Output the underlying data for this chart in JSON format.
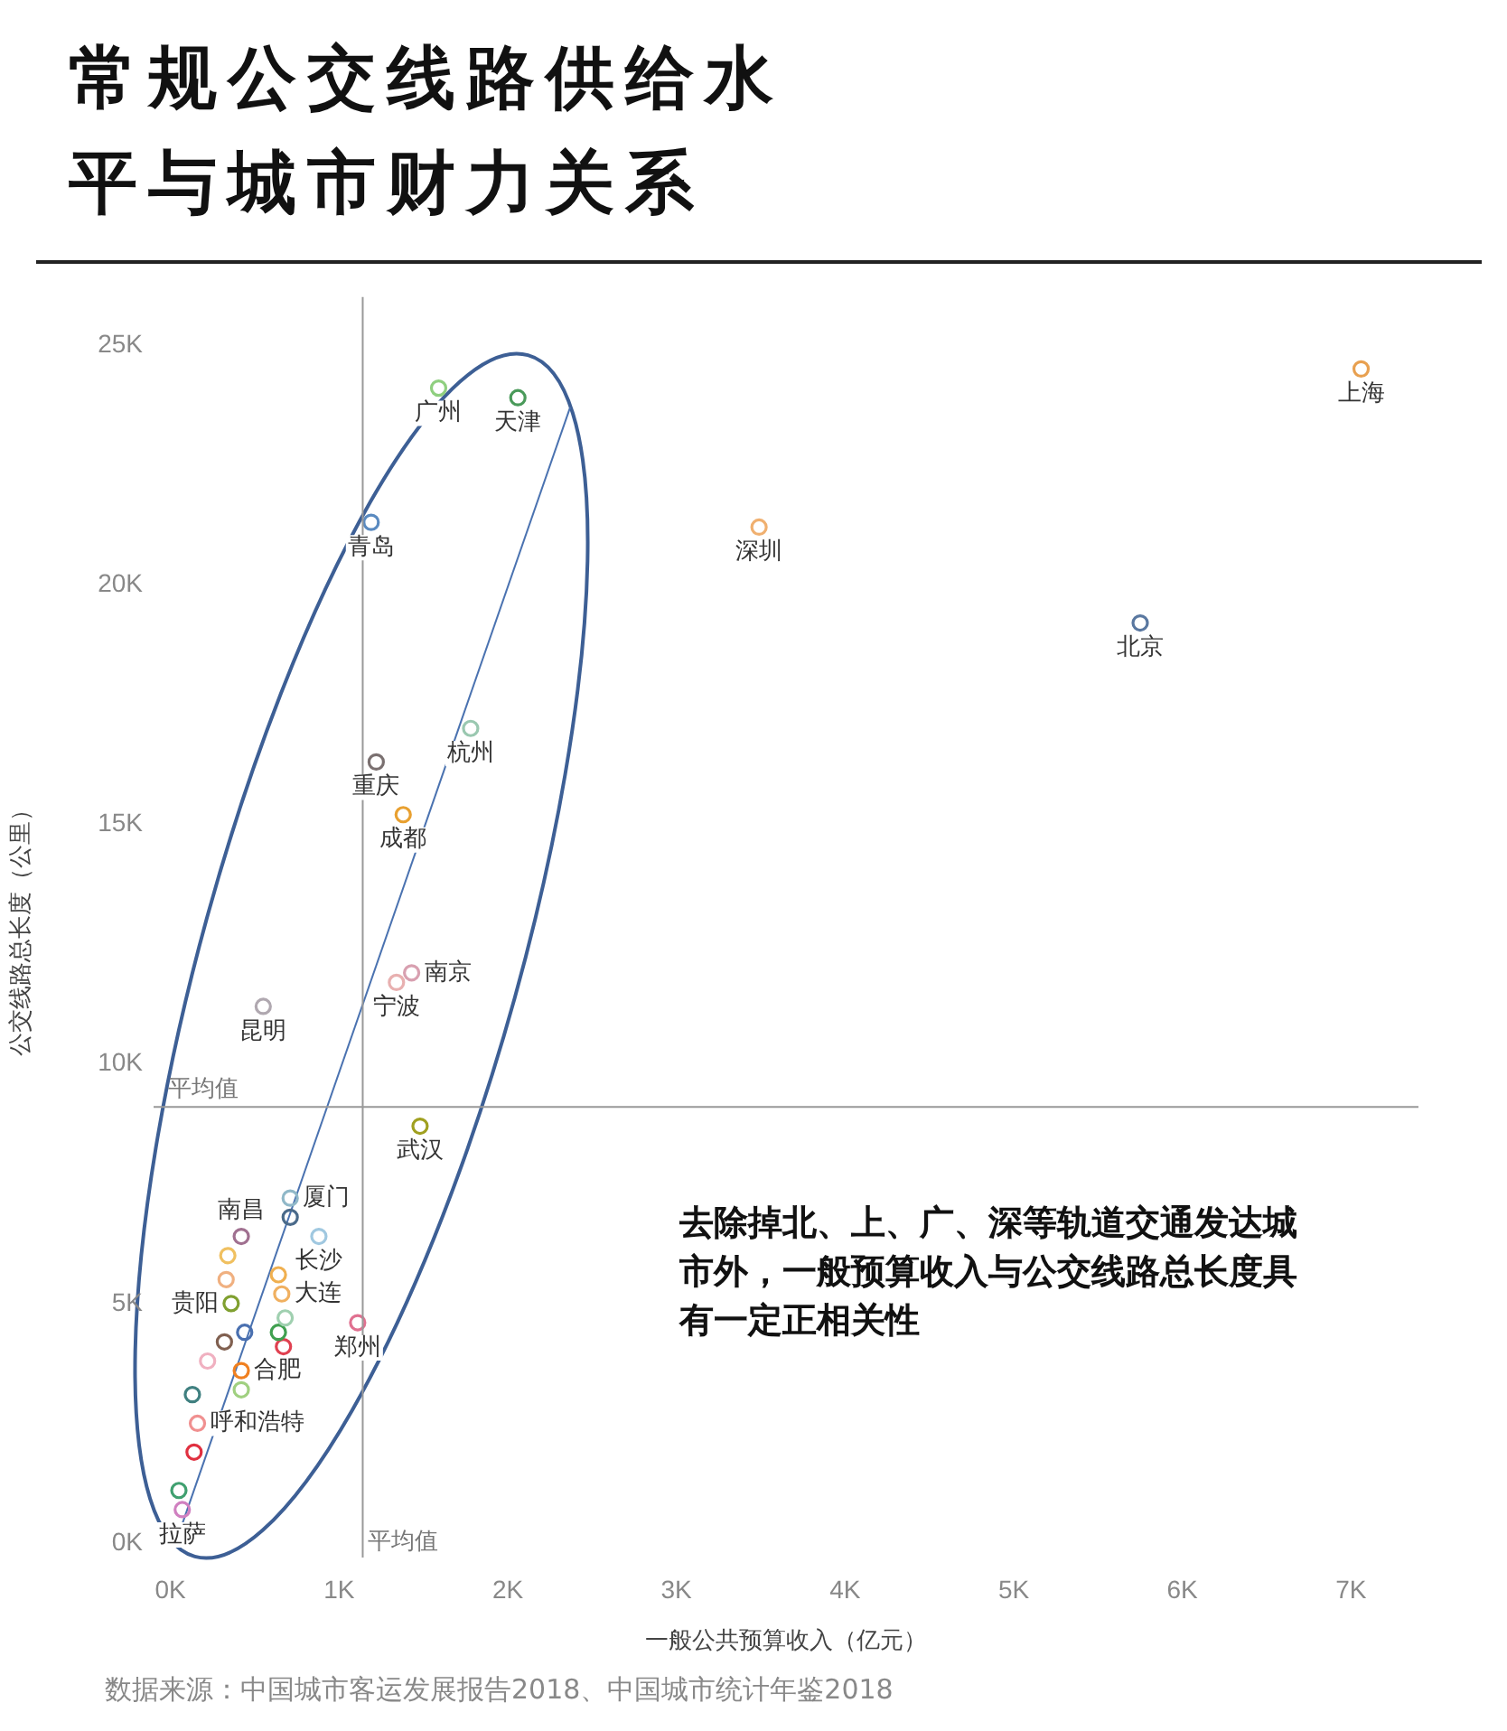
{
  "chart_data": {
    "type": "scatter",
    "title": "常规公交线路供给水平与城市财力关系",
    "xlabel": "一般公共预算收入（亿元）",
    "ylabel": "公交线路总长度（公里）",
    "xlim": [
      -100,
      7400
    ],
    "ylim": [
      -300,
      26000
    ],
    "xticks": [
      {
        "value": 0,
        "label": "0K"
      },
      {
        "value": 1000,
        "label": "1K"
      },
      {
        "value": 2000,
        "label": "2K"
      },
      {
        "value": 3000,
        "label": "3K"
      },
      {
        "value": 4000,
        "label": "4K"
      },
      {
        "value": 5000,
        "label": "5K"
      },
      {
        "value": 6000,
        "label": "6K"
      },
      {
        "value": 7000,
        "label": "7K"
      }
    ],
    "yticks": [
      {
        "value": 0,
        "label": "0K"
      },
      {
        "value": 5000,
        "label": "5K"
      },
      {
        "value": 10000,
        "label": "10K"
      },
      {
        "value": 15000,
        "label": "15K"
      },
      {
        "value": 20000,
        "label": "20K"
      },
      {
        "value": 25000,
        "label": "25K"
      }
    ],
    "grid": false,
    "legend": false,
    "marker": "circle",
    "ref_lines": [
      {
        "axis": "y",
        "value": 9100,
        "label": "平均值",
        "color": "#999999"
      },
      {
        "axis": "x",
        "value": 1140,
        "label": "平均值",
        "color": "#999999"
      }
    ],
    "annotations": [
      "去除掉北、上、广、深等轨道交通发达城市外，一般预算收入与公交线路总长度具有一定正相关性",
      "数据来源：中国城市客运发展报告2018、中国城市统计年鉴2018"
    ],
    "series": [
      {
        "name": "上海",
        "color": "#e8a050",
        "x": [
          7060
        ],
        "values": [
          24500
        ]
      },
      {
        "name": "北京",
        "color": "#5a78a0",
        "x": [
          5750
        ],
        "values": [
          19200
        ]
      },
      {
        "name": "深圳",
        "color": "#f0b070",
        "x": [
          3490
        ],
        "values": [
          21200
        ]
      },
      {
        "name": "广州",
        "color": "#8fcf7f",
        "x": [
          1590
        ],
        "values": [
          24100
        ]
      },
      {
        "name": "天津",
        "color": "#4a9a5a",
        "x": [
          2060
        ],
        "values": [
          23900
        ]
      },
      {
        "name": "青岛",
        "color": "#5a8ac0",
        "x": [
          1190
        ],
        "values": [
          21300
        ]
      },
      {
        "name": "杭州",
        "color": "#9ac8b0",
        "x": [
          1780
        ],
        "values": [
          17000
        ]
      },
      {
        "name": "重庆",
        "color": "#7a7070",
        "x": [
          1220
        ],
        "values": [
          16300
        ]
      },
      {
        "name": "成都",
        "color": "#e8a030",
        "x": [
          1380
        ],
        "values": [
          15200
        ]
      },
      {
        "name": "南京",
        "color": "#d8a0b0",
        "x": [
          1430
        ],
        "values": [
          11900
        ]
      },
      {
        "name": "宁波",
        "color": "#e8b0b0",
        "x": [
          1340
        ],
        "values": [
          11700
        ]
      },
      {
        "name": "昆明",
        "color": "#b0a8b0",
        "x": [
          550
        ],
        "values": [
          11200
        ]
      },
      {
        "name": "武汉",
        "color": "#a0a020",
        "x": [
          1480
        ],
        "values": [
          8700
        ]
      },
      {
        "name": "厦门",
        "color": "#90b8c8",
        "x": [
          710
        ],
        "values": [
          7200
        ]
      },
      {
        "color": "#4a6a8a",
        "x": [
          710
        ],
        "values": [
          6800
        ]
      },
      {
        "name": "南昌",
        "color": "#a07090",
        "x": [
          420
        ],
        "values": [
          6400
        ]
      },
      {
        "name": "长沙",
        "color": "#a0c8e0",
        "x": [
          880
        ],
        "values": [
          6400
        ]
      },
      {
        "color": "#f0c060",
        "x": [
          340
        ],
        "values": [
          6000
        ]
      },
      {
        "color": "#f0b050",
        "x": [
          640
        ],
        "values": [
          5600
        ]
      },
      {
        "name": "大连",
        "color": "#f0b060",
        "x": [
          660
        ],
        "values": [
          5200
        ]
      },
      {
        "color": "#f0b080",
        "x": [
          330
        ],
        "values": [
          5500
        ]
      },
      {
        "name": "贵阳",
        "color": "#80a030",
        "x": [
          360
        ],
        "values": [
          5000
        ]
      },
      {
        "color": "#a0d0b0",
        "x": [
          680
        ],
        "values": [
          4700
        ]
      },
      {
        "name": "郑州",
        "color": "#e07090",
        "x": [
          1110
        ],
        "values": [
          4600
        ]
      },
      {
        "color": "#4a70b0",
        "x": [
          440
        ],
        "values": [
          4400
        ]
      },
      {
        "color": "#40a050",
        "x": [
          640
        ],
        "values": [
          4400
        ]
      },
      {
        "color": "#806050",
        "x": [
          320
        ],
        "values": [
          4200
        ]
      },
      {
        "color": "#e04050",
        "x": [
          670
        ],
        "values": [
          4100
        ]
      },
      {
        "color": "#f0b0c0",
        "x": [
          220
        ],
        "values": [
          3800
        ]
      },
      {
        "name": "合肥",
        "color": "#f08020",
        "x": [
          420
        ],
        "values": [
          3600
        ]
      },
      {
        "color": "#a0d080",
        "x": [
          420
        ],
        "values": [
          3200
        ]
      },
      {
        "color": "#408080",
        "x": [
          130
        ],
        "values": [
          3100
        ]
      },
      {
        "name": "呼和浩特",
        "color": "#f09090",
        "x": [
          160
        ],
        "values": [
          2500
        ]
      },
      {
        "color": "#e03040",
        "x": [
          140
        ],
        "values": [
          1900
        ]
      },
      {
        "color": "#40a070",
        "x": [
          50
        ],
        "values": [
          1100
        ]
      },
      {
        "name": "拉萨",
        "color": "#d080c0",
        "x": [
          70
        ],
        "values": [
          700
        ]
      },
      {
        "type": "line",
        "marker": "none",
        "color": "#4a72b0",
        "x": [
          70,
          2370
        ],
        "values": [
          400,
          23700
        ]
      }
    ]
  }
}
